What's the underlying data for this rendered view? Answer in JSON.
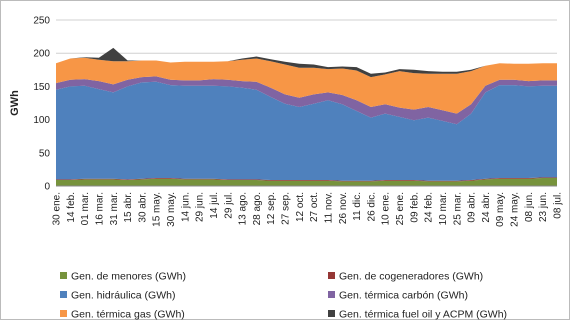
{
  "chart_data": {
    "type": "stacked_area",
    "y_label": "GWh",
    "categories": [
      "30 ene.",
      "14 feb.",
      "01 mar.",
      "16 mar.",
      "31 mar.",
      "15 abr.",
      "30 abr.",
      "15 may.",
      "30 may.",
      "14 jun.",
      "29 jun.",
      "14 jul.",
      "29 jul.",
      "13 ago.",
      "28 ago.",
      "12 sep.",
      "27 sep.",
      "12 oct.",
      "27 oct.",
      "11 nov.",
      "26 nov.",
      "11 dic.",
      "26 dic.",
      "10 ene.",
      "25 ene.",
      "09 feb.",
      "24 feb.",
      "10 mar.",
      "25 mar.",
      "09 abr.",
      "24 abr.",
      "09 may.",
      "24 may.",
      "08 jun.",
      "23 jun.",
      "08 jul."
    ],
    "series": [
      {
        "name": "Gen. de menores (GWh)",
        "color": "#77933c",
        "values": [
          9,
          9,
          10,
          10,
          10,
          9,
          10,
          11,
          11,
          10,
          10,
          10,
          9,
          9,
          9,
          8,
          8,
          8,
          8,
          8,
          7,
          7,
          7,
          8,
          8,
          8,
          7,
          7,
          7,
          8,
          10,
          11,
          11,
          11,
          12,
          12
        ]
      },
      {
        "name": "Gen. de cogeneradores (GWh)",
        "color": "#953735",
        "values": [
          1,
          1,
          1,
          1,
          1,
          1,
          1,
          1,
          1,
          1,
          1,
          1,
          1,
          1,
          1,
          1,
          1,
          1,
          1,
          1,
          1,
          1,
          1,
          1,
          1,
          1,
          1,
          1,
          1,
          1,
          1,
          1,
          1,
          1,
          1,
          1
        ]
      },
      {
        "name": "Gen. hidráulica (GWh)",
        "color": "#4f81bd",
        "values": [
          135,
          140,
          140,
          135,
          130,
          140,
          145,
          145,
          140,
          140,
          140,
          140,
          140,
          138,
          135,
          125,
          115,
          110,
          115,
          120,
          115,
          105,
          95,
          100,
          95,
          90,
          95,
          90,
          85,
          100,
          130,
          140,
          140,
          138,
          138,
          138
        ]
      },
      {
        "name": "Gen. térmica carbón (GWh)",
        "color": "#8064a2",
        "values": [
          10,
          10,
          10,
          12,
          12,
          10,
          8,
          8,
          8,
          8,
          8,
          10,
          10,
          10,
          12,
          14,
          14,
          14,
          14,
          12,
          14,
          16,
          16,
          14,
          14,
          16,
          16,
          16,
          16,
          14,
          10,
          8,
          8,
          8,
          8,
          8
        ]
      },
      {
        "name": "Gen. térmica gas (GWh)",
        "color": "#f79646",
        "values": [
          30,
          32,
          32,
          32,
          35,
          28,
          25,
          24,
          26,
          28,
          28,
          26,
          28,
          32,
          35,
          40,
          45,
          45,
          40,
          35,
          40,
          45,
          45,
          45,
          55,
          55,
          50,
          55,
          60,
          50,
          30,
          25,
          24,
          26,
          26,
          26
        ]
      },
      {
        "name": "Gen. térmica fuel oil y ACPM (GWh)",
        "color": "#404040",
        "values": [
          0,
          0,
          1,
          3,
          20,
          1,
          0,
          0,
          0,
          0,
          0,
          0,
          0,
          2,
          3,
          3,
          4,
          6,
          5,
          3,
          3,
          5,
          5,
          3,
          3,
          5,
          4,
          3,
          3,
          2,
          0,
          0,
          0,
          0,
          0,
          0
        ]
      }
    ],
    "ylim": [
      0,
      250
    ],
    "yticks": [
      0,
      50,
      100,
      150,
      200,
      250
    ],
    "grid": true
  }
}
